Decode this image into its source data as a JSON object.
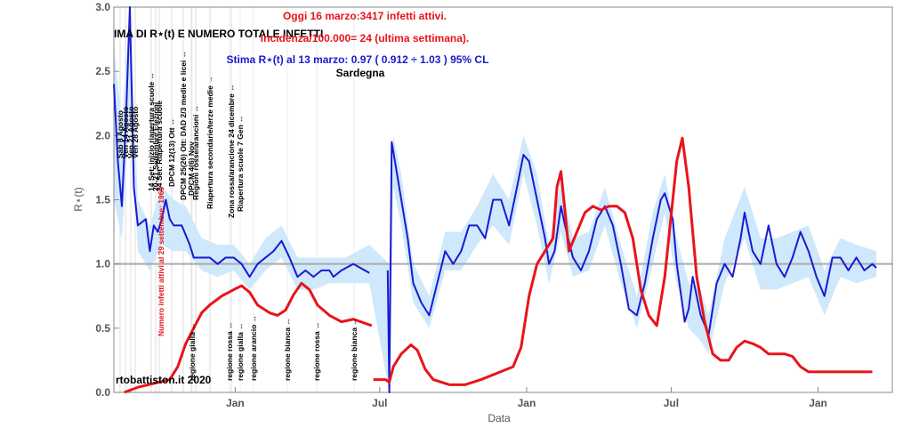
{
  "chart_data": {
    "type": "line",
    "title": "IMA DI R⋆(t) E NUMERO TOTALE INFETTI",
    "subtitles": [
      "Oggi 16 marzo:3417 infetti attivi.",
      "Incidenza/100.000= 24 (ultima settimana).",
      "Stima R⋆(t) al 13 marzo: 0.97 ( 0.912 ÷ 1.03 ) 95% CL",
      "Sardegna"
    ],
    "subtitle_colors": [
      "#e8141a",
      "#e8141a",
      "#1a1ad0",
      "#000000"
    ],
    "x_label": "Data",
    "y_label": "R⋆(t)",
    "xlim": [
      0,
      975
    ],
    "xticks": [
      {
        "value": 152,
        "label": "Jan"
      },
      {
        "value": 333,
        "label": "Jul"
      },
      {
        "value": 517,
        "label": "Jan"
      },
      {
        "value": 698,
        "label": "Jul"
      },
      {
        "value": 882,
        "label": "Jan"
      }
    ],
    "ylim": [
      0,
      3
    ],
    "yticks": [
      {
        "value": 0,
        "label": "0.0"
      },
      0.5,
      {
        "value": 1,
        "label": "1.0"
      },
      1.5,
      {
        "value": 2,
        "label": "2.0"
      },
      2.5,
      {
        "value": 3,
        "label": "3.0"
      }
    ],
    "reference_line": 1,
    "band": {
      "color": "#cfe8fb",
      "x": [
        0,
        10,
        20,
        30,
        45,
        60,
        75,
        90,
        110,
        130,
        150,
        170,
        190,
        210,
        230,
        250,
        270,
        290,
        320,
        345,
        350,
        360,
        375,
        395,
        415,
        435,
        455,
        475,
        495,
        513,
        530,
        545,
        560,
        575,
        595,
        615,
        635,
        655,
        675,
        690,
        705,
        720,
        735,
        745,
        765,
        790,
        810,
        830,
        850,
        870,
        890,
        910,
        930,
        955
      ],
      "lower": [
        1.5,
        1.2,
        2.2,
        1.1,
        0.95,
        1.15,
        1.1,
        1.1,
        0.95,
        0.9,
        0.95,
        0.8,
        0.95,
        1.05,
        0.8,
        0.8,
        0.85,
        0.85,
        0.85,
        0.0,
        1.6,
        1.3,
        0.7,
        0.5,
        0.95,
        0.95,
        1.15,
        1.3,
        1.15,
        1.7,
        1.3,
        0.85,
        1.25,
        0.9,
        0.95,
        1.3,
        0.85,
        0.5,
        1.0,
        1.4,
        0.85,
        0.5,
        0.4,
        0.3,
        0.85,
        1.2,
        0.8,
        0.8,
        0.85,
        0.9,
        0.6,
        0.9,
        0.85,
        0.9
      ],
      "upper": [
        2.7,
        2.1,
        3.0,
        1.5,
        1.3,
        1.6,
        1.5,
        1.45,
        1.2,
        1.15,
        1.15,
        1.0,
        1.2,
        1.3,
        1.05,
        1.05,
        1.05,
        1.05,
        1.15,
        1.0,
        2.0,
        1.7,
        1.0,
        0.75,
        1.25,
        1.25,
        1.45,
        1.7,
        1.5,
        2.0,
        1.7,
        1.15,
        1.65,
        1.2,
        1.25,
        1.6,
        1.15,
        0.75,
        1.4,
        1.7,
        1.2,
        0.85,
        0.8,
        0.6,
        1.2,
        1.6,
        1.2,
        1.2,
        1.25,
        1.3,
        0.95,
        1.2,
        1.15,
        1.1
      ]
    },
    "series": [
      {
        "color": "#1a1ad0",
        "width": 2,
        "x": [
          0,
          5,
          10,
          15,
          20,
          25,
          30,
          40,
          45,
          50,
          55,
          60,
          65,
          70,
          75,
          85,
          95,
          100,
          110,
          120,
          130,
          140,
          150,
          160,
          170,
          180,
          190,
          200,
          210,
          220,
          230,
          240,
          250,
          260,
          270,
          275,
          285,
          300,
          320,
          330,
          343,
          345,
          348,
          352,
          360,
          368,
          375,
          385,
          395,
          405,
          415,
          425,
          435,
          445,
          455,
          465,
          475,
          485,
          495,
          505,
          513,
          520,
          530,
          540,
          545,
          552,
          560,
          565,
          575,
          585,
          595,
          605,
          615,
          625,
          635,
          645,
          655,
          665,
          675,
          685,
          690,
          700,
          705,
          715,
          720,
          725,
          735,
          745,
          755,
          765,
          775,
          785,
          790,
          800,
          810,
          820,
          830,
          840,
          850,
          860,
          870,
          880,
          890,
          900,
          910,
          920,
          930,
          940,
          950,
          955
        ],
        "values": [
          2.4,
          1.8,
          1.45,
          2.1,
          3.0,
          1.6,
          1.3,
          1.35,
          1.1,
          1.3,
          1.25,
          1.35,
          1.5,
          1.35,
          1.3,
          1.3,
          1.15,
          1.05,
          1.05,
          1.05,
          1.0,
          1.05,
          1.05,
          1.0,
          0.9,
          1.0,
          1.05,
          1.1,
          1.18,
          1.05,
          0.9,
          0.95,
          0.9,
          0.95,
          0.95,
          0.9,
          0.95,
          1.0,
          0.93,
          null,
          0.95,
          0.0,
          1.95,
          1.8,
          1.5,
          1.2,
          0.85,
          0.7,
          0.6,
          0.85,
          1.1,
          1.0,
          1.1,
          1.3,
          1.3,
          1.2,
          1.5,
          1.5,
          1.3,
          1.6,
          1.85,
          1.8,
          1.5,
          1.2,
          1.0,
          1.1,
          1.45,
          1.3,
          1.05,
          0.95,
          1.1,
          1.35,
          1.45,
          1.3,
          1.0,
          0.65,
          0.6,
          0.85,
          1.2,
          1.5,
          1.55,
          1.35,
          1.0,
          0.55,
          0.65,
          0.9,
          0.6,
          0.45,
          0.85,
          1.0,
          0.9,
          1.2,
          1.4,
          1.1,
          1.0,
          1.3,
          1.0,
          0.9,
          1.05,
          1.25,
          1.1,
          0.9,
          0.75,
          1.05,
          1.05,
          0.95,
          1.05,
          0.95,
          1.0,
          0.97
        ]
      },
      {
        "color": "#e8141a",
        "width": 3,
        "x": [
          13,
          30,
          50,
          70,
          80,
          90,
          100,
          110,
          120,
          135,
          150,
          160,
          170,
          180,
          195,
          205,
          215,
          225,
          235,
          245,
          255,
          270,
          285,
          300,
          323,
          324,
          325,
          340,
          345,
          350,
          360,
          372,
          380,
          390,
          400,
          420,
          440,
          460,
          480,
          500,
          510,
          520,
          530,
          540,
          545,
          550,
          555,
          560,
          570,
          580,
          590,
          600,
          610,
          620,
          630,
          640,
          650,
          660,
          670,
          680,
          690,
          700,
          705,
          712,
          720,
          730,
          740,
          750,
          760,
          770,
          780,
          790,
          800,
          810,
          820,
          830,
          840,
          850,
          860,
          870,
          890,
          950
        ],
        "values": [
          0.0,
          0.04,
          0.07,
          0.1,
          0.2,
          0.38,
          0.5,
          0.62,
          0.68,
          0.75,
          0.8,
          0.83,
          0.78,
          0.68,
          0.62,
          0.6,
          0.64,
          0.76,
          0.85,
          0.8,
          0.68,
          0.6,
          0.55,
          0.57,
          0.52,
          null,
          0.1,
          0.1,
          0.08,
          0.2,
          0.3,
          0.37,
          0.33,
          0.18,
          0.1,
          0.06,
          0.06,
          0.1,
          0.15,
          0.2,
          0.35,
          0.75,
          1.0,
          1.1,
          1.15,
          1.2,
          1.6,
          1.72,
          1.1,
          1.25,
          1.4,
          1.45,
          1.42,
          1.45,
          1.45,
          1.4,
          1.2,
          0.8,
          0.6,
          0.52,
          0.9,
          1.5,
          1.8,
          1.98,
          1.6,
          0.9,
          0.55,
          0.3,
          0.25,
          0.25,
          0.35,
          0.4,
          0.38,
          0.35,
          0.3,
          0.3,
          0.3,
          0.28,
          0.2,
          0.16,
          0.16,
          0.16
        ]
      }
    ],
    "annotations": [
      "Sab 8 Agosto",
      "Ven 14 Agosto",
      "Ven 21 Agosto",
      "Ven 28 Agosto",
      "14 Set: inizio riapertura scuole ↔",
      "20-21 Settembre Elezioni",
      "24 Set: Riapertura scuole",
      "DPCM 12(13) Ott ↔",
      "DPCM 25(26) Ott: DAD 2/3 medie e licei ↔",
      "DPCM 4(6) Nov",
      "Regioni rosse/arancioni ↔",
      "Riapertura secondarie/terze medie →",
      "Zona rossa/arancione 24 dicembre ↔",
      "Riapertura scuole 7 Gen ↔"
    ],
    "bottom_annotations": [
      "regione gialla ↔",
      "regione rossa ↔",
      "regione gialla ↔",
      "regione arancio ↔",
      "regione bianca ↔",
      "regione rossa ↔",
      "regione bianca ↔"
    ],
    "red_note": "Numero infetti attivi al 29 settembre: 1969",
    "credit": "rtobattiston.it 2020"
  }
}
